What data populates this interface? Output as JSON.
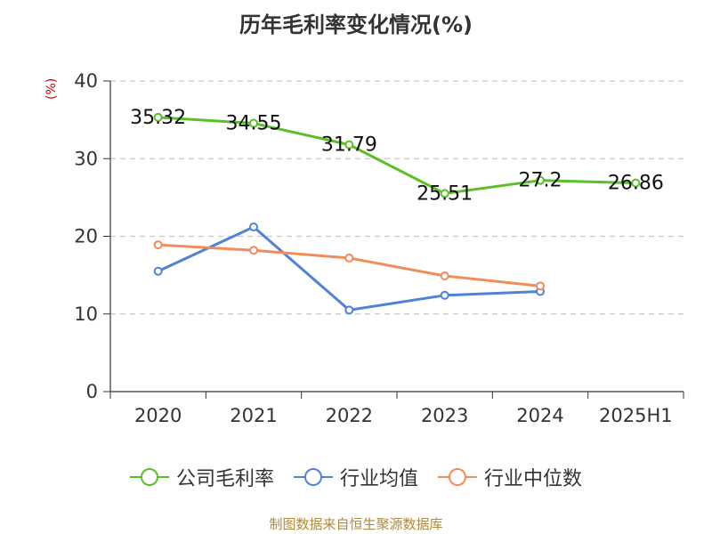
{
  "chart_data": {
    "type": "line",
    "title": "历年毛利率变化情况(%)",
    "ylabel": "(%)",
    "categories": [
      "2020",
      "2021",
      "2022",
      "2023",
      "2024",
      "2025H1"
    ],
    "ylim": [
      0,
      40
    ],
    "yticks": [
      0,
      10,
      20,
      30,
      40
    ],
    "grid": true,
    "legend_position": "bottom",
    "series": [
      {
        "name": "公司毛利率",
        "color": "#5bbf2a",
        "values": [
          35.32,
          34.55,
          31.79,
          25.51,
          27.2,
          26.86
        ],
        "labels": [
          "35.32",
          "34.55",
          "31.79",
          "25.51",
          "27.2",
          "26.86"
        ]
      },
      {
        "name": "行业均值",
        "color": "#4f82d8",
        "values": [
          15.5,
          21.2,
          10.5,
          12.4,
          12.9,
          null
        ]
      },
      {
        "name": "行业中位数",
        "color": "#f28c5a",
        "values": [
          18.9,
          18.2,
          17.2,
          14.9,
          13.6,
          null
        ]
      }
    ]
  },
  "source_text": "制图数据来自恒生聚源数据库"
}
